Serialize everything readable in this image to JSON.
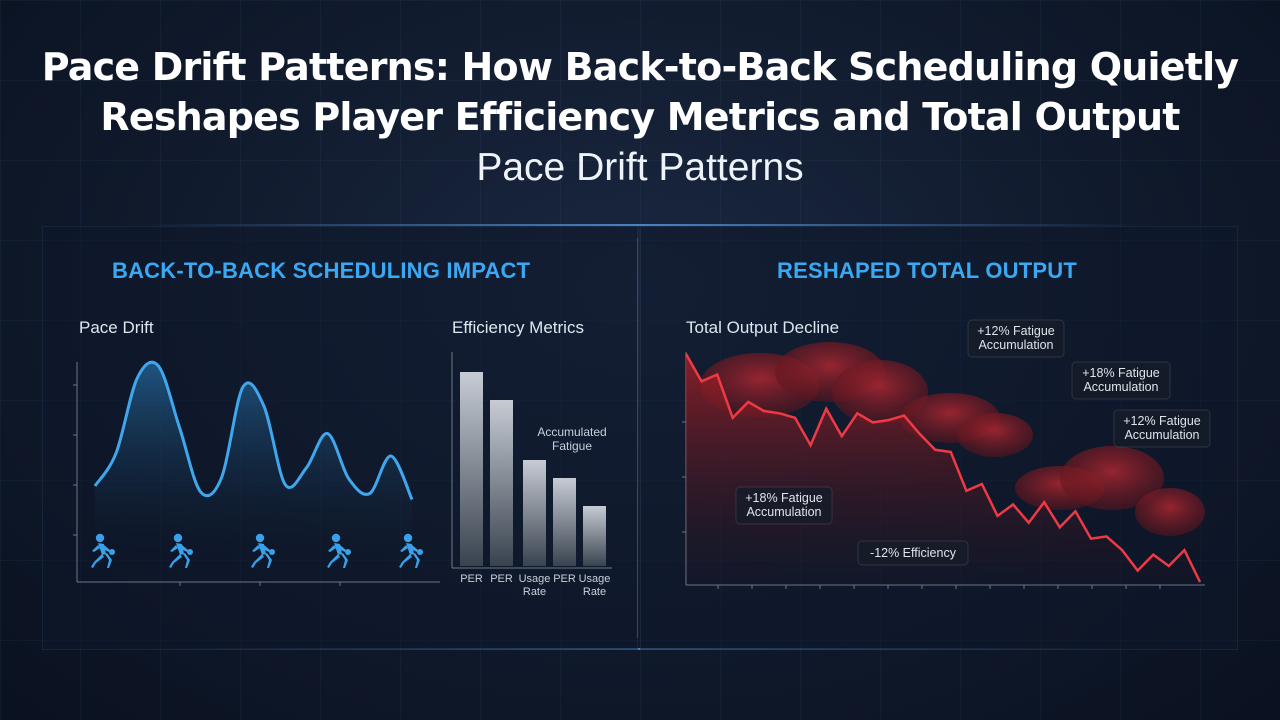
{
  "title_line1": "Pace Drift Patterns: How Back-to-Back Scheduling Quietly",
  "title_line2": "Reshapes Player Efficiency Metrics and Total Output",
  "subtitle": "Pace Drift Patterns",
  "left_panel": {
    "heading": "BACK-TO-BACK SCHEDULING IMPACT"
  },
  "right_panel": {
    "heading": "RESHAPED TOTAL OUTPUT"
  },
  "colors": {
    "accent": "#3aa8f2",
    "pace_line": "#3fa7ee",
    "decline_line": "#ef3a45",
    "bar_top": "#c7ccd4"
  },
  "icons": [
    "player-running-icon",
    "player-running-icon",
    "player-running-icon",
    "player-running-icon",
    "player-running-icon"
  ],
  "chart_data": [
    {
      "type": "line",
      "title": "Pace Drift",
      "series": [
        {
          "values": [
            0.16,
            0.38,
            0.88,
            0.96,
            0.55,
            0.12,
            0.22,
            0.82,
            0.69,
            0.17,
            0.28,
            0.51,
            0.21,
            0.11,
            0.36,
            0.07
          ]
        }
      ],
      "ylim": [
        0,
        1
      ],
      "grid": false
    },
    {
      "type": "bar",
      "title": "Efficiency Metrics",
      "categories": [
        "PER",
        "PER",
        "Usage Rate",
        "PER",
        "Usage Rate"
      ],
      "values": [
        0.97,
        0.83,
        0.53,
        0.44,
        0.3
      ],
      "annotations": [
        {
          "text": "Accumulated Fatigue"
        }
      ],
      "ylim": [
        0,
        1
      ]
    },
    {
      "type": "area",
      "title": "Total Output Decline",
      "values": [
        1.0,
        0.88,
        0.91,
        0.72,
        0.79,
        0.75,
        0.74,
        0.72,
        0.6,
        0.76,
        0.64,
        0.74,
        0.7,
        0.71,
        0.73,
        0.65,
        0.58,
        0.57,
        0.4,
        0.43,
        0.29,
        0.34,
        0.26,
        0.35,
        0.24,
        0.31,
        0.19,
        0.2,
        0.14,
        0.05,
        0.12,
        0.07,
        0.14,
        0.0
      ],
      "annotations": [
        {
          "text": "+12% Fatigue Accumulation"
        },
        {
          "text": "+18% Fatigue Accumulation"
        },
        {
          "text": "+12% Fatigue Accumulation"
        },
        {
          "text": "+18% Fatigue Accumulation"
        },
        {
          "text": "-12% Efficiency"
        }
      ],
      "ylim": [
        0,
        1
      ]
    }
  ]
}
